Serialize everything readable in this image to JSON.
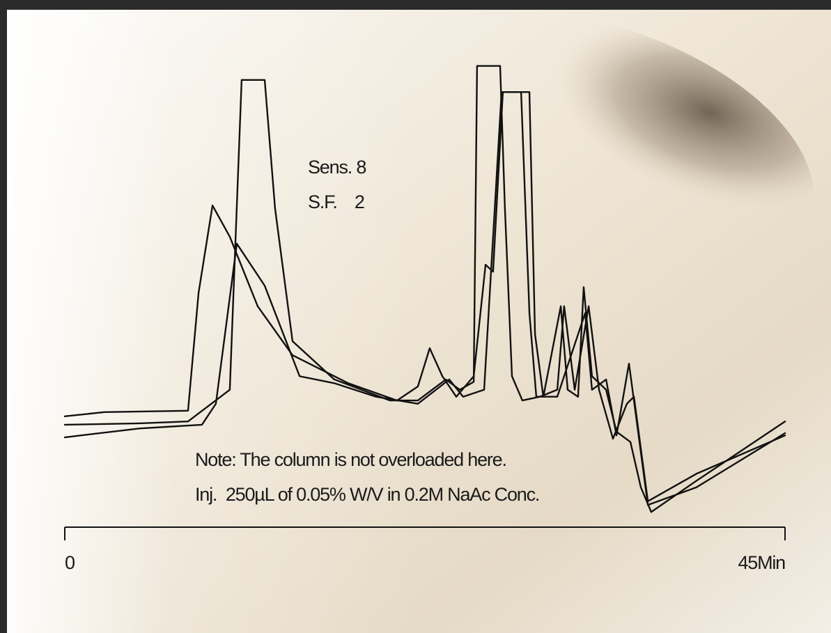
{
  "chart_data": {
    "type": "line",
    "annotations": [
      "Sens. 8",
      "S.F.    2",
      "Note: The column is not overloaded here.",
      "Inj.  250µL of 0.05% W/V in 0.2M NaAc Conc."
    ],
    "xlim": [
      0,
      45
    ],
    "xticks": [
      0,
      {
        "value": 45,
        "label": "45Min"
      }
    ],
    "ylim": [
      0,
      100
    ],
    "color": "#111111",
    "series": [
      {
        "x": [
          0,
          2.48,
          7.7,
          8.36,
          9.23,
          10.31,
          12.05,
          14.23,
          17.71,
          20.76,
          22.06,
          22.8,
          23.59,
          24.46,
          25.55,
          26.29,
          26.76,
          27.37,
          29.03,
          29.38,
          29.9,
          30.99,
          31.42,
          32.07,
          32.42,
          32.94,
          33.82,
          34.47,
          35.34,
          35.99,
          36.64,
          39.47,
          45
        ],
        "values": [
          24.2,
          25.1,
          25.4,
          50.7,
          69.4,
          62.7,
          47.8,
          37.3,
          31.3,
          27.6,
          30.6,
          38.8,
          32.8,
          28.4,
          32.8,
          56.7,
          55.2,
          93.7,
          93.7,
          41.8,
          28.4,
          47.8,
          29.9,
          28.4,
          51.9,
          32.8,
          29.9,
          20.9,
          18.7,
          9.0,
          3.7,
          10.4,
          23.1
        ]
      },
      {
        "x": [
          0,
          4.66,
          7.7,
          10.31,
          11.05,
          12.49,
          13.14,
          14.23,
          16.84,
          20.32,
          22.06,
          23.81,
          24.68,
          25.55,
          25.76,
          27.2,
          27.5,
          27.94,
          28.59,
          29.68,
          30.77,
          31.2,
          31.86,
          32.73,
          33.38,
          34.25,
          35.12,
          35.56,
          36.43,
          39.47,
          45
        ],
        "values": [
          22.4,
          22.7,
          23.1,
          29.9,
          96.3,
          96.3,
          68.7,
          40.3,
          32.1,
          27.6,
          27.6,
          32.1,
          29.9,
          31.6,
          99.3,
          99.3,
          68.7,
          32.8,
          27.6,
          28.4,
          29.9,
          47.8,
          29.9,
          47.8,
          29.9,
          19.4,
          26.9,
          28.4,
          6.0,
          11.9,
          20.1
        ]
      },
      {
        "x": [
          0,
          4.66,
          8.57,
          9.44,
          10.75,
          12.49,
          14.67,
          16.84,
          19.45,
          22.06,
          24.02,
          24.89,
          26.2,
          27.29,
          28.51,
          29.03,
          29.46,
          30.77,
          32.51,
          32.94,
          33.82,
          34.47,
          35.25,
          35.56,
          36.43,
          39.47,
          45
        ],
        "values": [
          19.7,
          21.6,
          22.4,
          26.9,
          61.2,
          52.2,
          32.8,
          31.3,
          28.4,
          26.9,
          32.1,
          28.4,
          29.9,
          93.7,
          93.7,
          46.3,
          28.4,
          28.4,
          46.3,
          29.9,
          32.1,
          20.1,
          35.5,
          27.6,
          5.2,
          9.0,
          20.6
        ]
      }
    ]
  }
}
